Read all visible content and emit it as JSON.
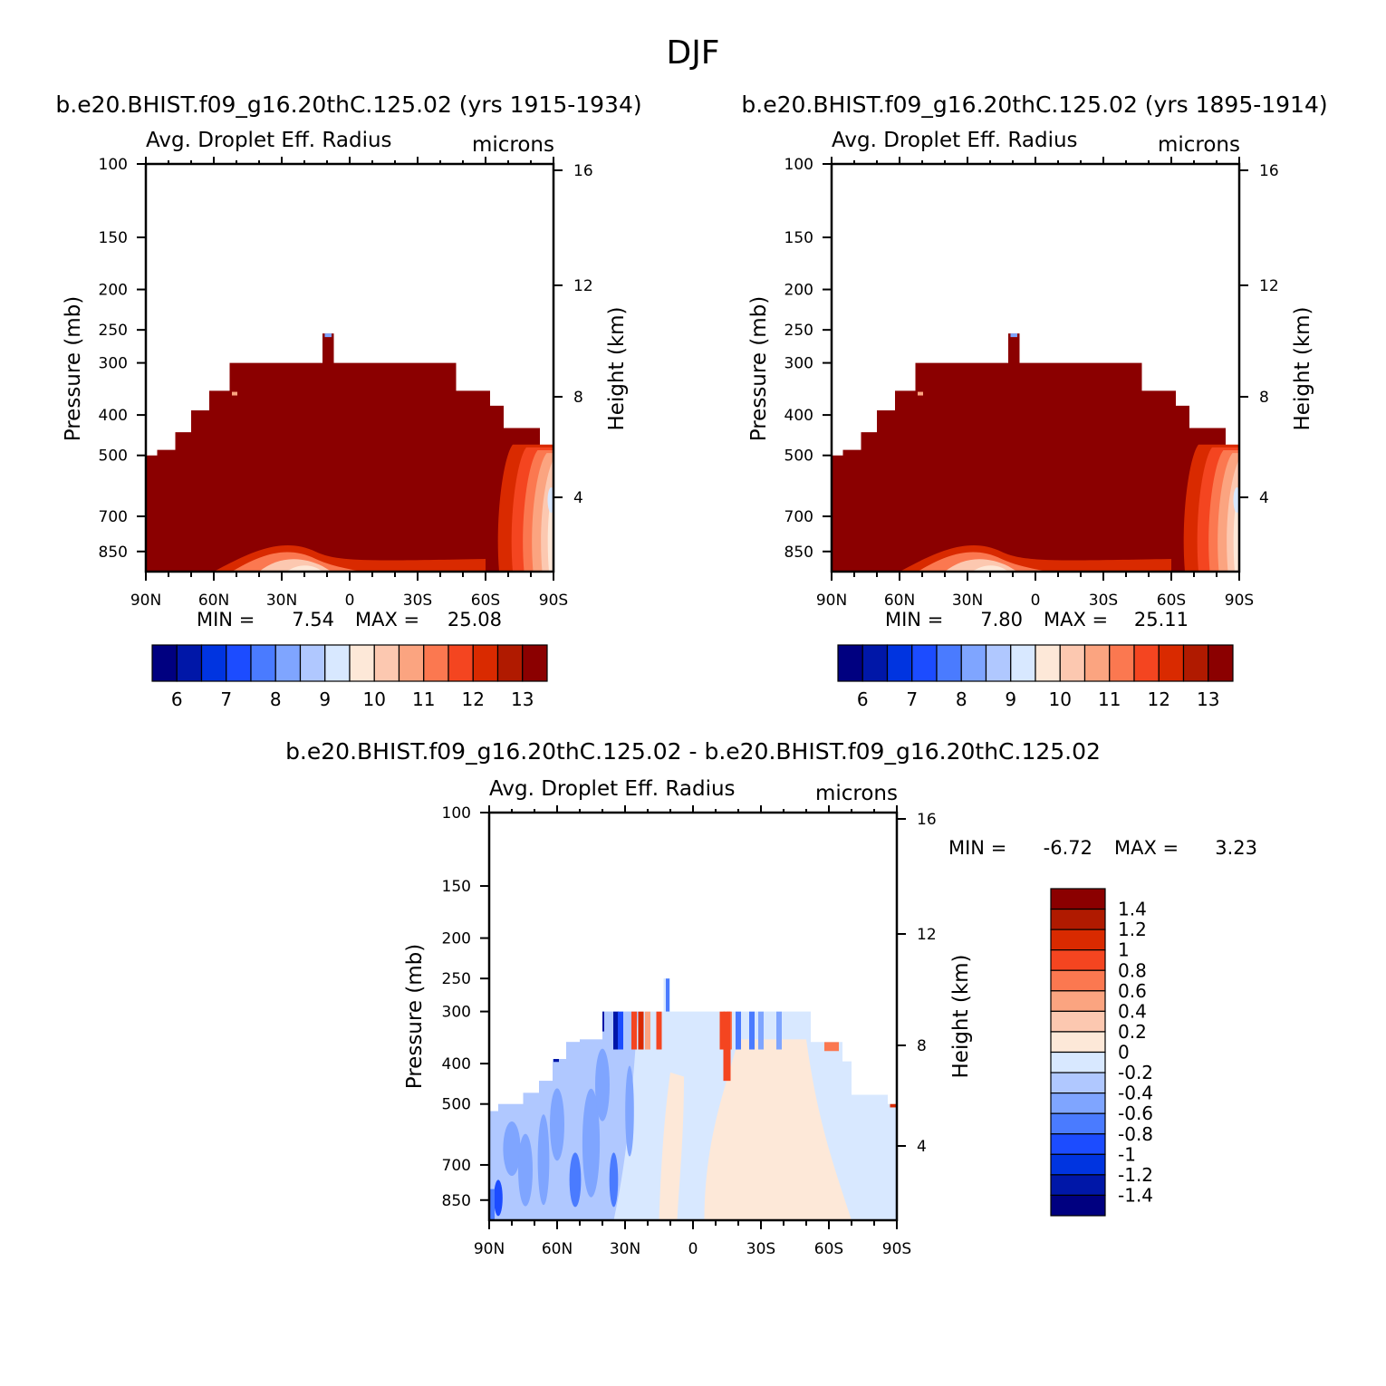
{
  "page_title": "DJF",
  "colors": {
    "abs_scale": [
      "#000080",
      "#0017a8",
      "#0034e0",
      "#1c4cff",
      "#4a7bff",
      "#7fa5ff",
      "#b0c8ff",
      "#d8e8ff",
      "#fde8d8",
      "#fcc8b0",
      "#fba480",
      "#fb7850",
      "#f44520",
      "#d92a00",
      "#b01a00",
      "#8b0000"
    ],
    "diff_scale": [
      "#000080",
      "#0017a8",
      "#0034e0",
      "#1c4cff",
      "#4a7bff",
      "#7fa5ff",
      "#b0c8ff",
      "#d8e8ff",
      "#fde8d8",
      "#fcc8b0",
      "#fba480",
      "#fb7850",
      "#f44520",
      "#d92a00",
      "#b01a00",
      "#8b0000"
    ]
  },
  "chart_data": [
    {
      "type": "heatmap",
      "title": "b.e20.BHIST.f09_g16.20thC.125.02 (yrs 1915-1934)",
      "variable_label": "Avg. Droplet Eff. Radius",
      "units": "microns",
      "ylabel": "Pressure (mb)",
      "ylabel_right": "Height (km)",
      "x_ticks": [
        "90N",
        "60N",
        "30N",
        "0",
        "30S",
        "60S",
        "90S"
      ],
      "y_ticks": [
        100,
        150,
        200,
        250,
        300,
        400,
        500,
        700,
        850
      ],
      "y_right_ticks": [
        16,
        12,
        8,
        4
      ],
      "min_label": "MIN =",
      "min_value": "7.54",
      "max_label": "MAX =",
      "max_value": "25.08",
      "colorbar_labels": [
        "6",
        "7",
        "8",
        "9",
        "10",
        "11",
        "12",
        "13"
      ]
    },
    {
      "type": "heatmap",
      "title": "b.e20.BHIST.f09_g16.20thC.125.02 (yrs 1895-1914)",
      "variable_label": "Avg. Droplet Eff. Radius",
      "units": "microns",
      "ylabel": "Pressure (mb)",
      "ylabel_right": "Height (km)",
      "x_ticks": [
        "90N",
        "60N",
        "30N",
        "0",
        "30S",
        "60S",
        "90S"
      ],
      "y_ticks": [
        100,
        150,
        200,
        250,
        300,
        400,
        500,
        700,
        850
      ],
      "y_right_ticks": [
        16,
        12,
        8,
        4
      ],
      "min_label": "MIN =",
      "min_value": "7.80",
      "max_label": "MAX =",
      "max_value": "25.11",
      "colorbar_labels": [
        "6",
        "7",
        "8",
        "9",
        "10",
        "11",
        "12",
        "13"
      ]
    },
    {
      "type": "heatmap",
      "title": "b.e20.BHIST.f09_g16.20thC.125.02 - b.e20.BHIST.f09_g16.20thC.125.02",
      "variable_label": "Avg. Droplet Eff. Radius",
      "units": "microns",
      "ylabel": "Pressure (mb)",
      "ylabel_right": "Height (km)",
      "x_ticks": [
        "90N",
        "60N",
        "30N",
        "0",
        "30S",
        "60S",
        "90S"
      ],
      "y_ticks": [
        100,
        150,
        200,
        250,
        300,
        400,
        500,
        700,
        850
      ],
      "y_right_ticks": [
        16,
        12,
        8,
        4
      ],
      "min_label": "MIN =",
      "min_value": "-6.72",
      "max_label": "MAX =",
      "max_value": "3.23",
      "colorbar_labels": [
        "1.4",
        "1.2",
        "1",
        "0.8",
        "0.6",
        "0.4",
        "0.2",
        "0",
        "-0.2",
        "-0.4",
        "-0.6",
        "-0.8",
        "-1",
        "-1.2",
        "-1.4"
      ]
    }
  ]
}
